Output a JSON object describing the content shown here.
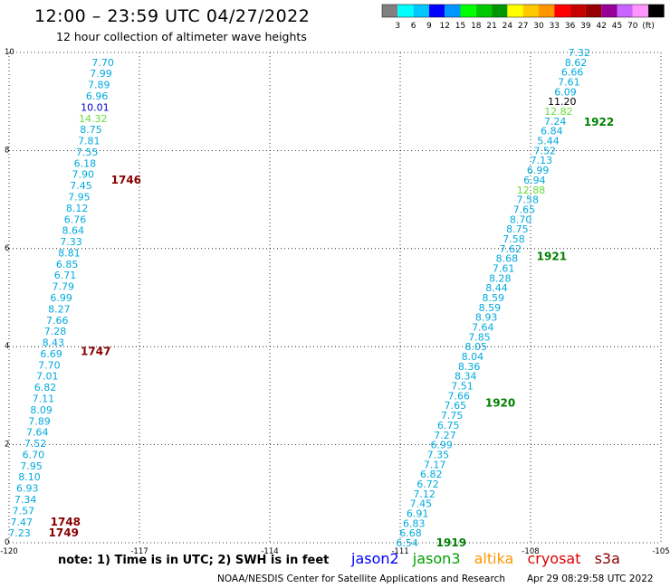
{
  "header": {
    "title": "12:00 – 23:59 UTC 04/27/2022",
    "subtitle": "12 hour collection of altimeter wave heights"
  },
  "legend": {
    "colors": [
      "#808080",
      "#00ffff",
      "#00c8ff",
      "#0000ff",
      "#0096ff",
      "#00ff00",
      "#00c800",
      "#009600",
      "#ffff00",
      "#ffc800",
      "#ff9600",
      "#ff0000",
      "#c80000",
      "#960000",
      "#960096",
      "#c864ff",
      "#ff96ff",
      "#000000"
    ],
    "labels": [
      "3",
      "6",
      "9",
      "12",
      "15",
      "18",
      "21",
      "24",
      "27",
      "30",
      "33",
      "36",
      "39",
      "42",
      "45",
      "70",
      "(ft)"
    ]
  },
  "chart_data": {
    "type": "scatter",
    "xlim": [
      -120,
      -105
    ],
    "ylim": [
      0,
      10
    ],
    "x_ticks": [
      "-120",
      "-117",
      "-114",
      "-111",
      "-108",
      "-105"
    ],
    "y_ticks": [
      "0",
      "2",
      "4",
      "6",
      "8",
      "10"
    ],
    "grid": true,
    "track_color": "#00aadd",
    "tracks": [
      {
        "satellite": "cryosat",
        "x_start": -119.76,
        "y_start": 0.2,
        "x_end": -117.84,
        "y_end": 9.8,
        "values": [
          "7.23",
          "7.47",
          "7.57",
          "7.34",
          "6.93",
          "8.10",
          "7.95",
          "6.70",
          "7.52",
          "7.64",
          "7.89",
          "8.09",
          "7.11",
          "6.82",
          "7.01",
          "7.70",
          "6.69",
          "8.43",
          "7.28",
          "7.66",
          "8.27",
          "6.99",
          "7.79",
          "6.71",
          "6.85",
          "8.81",
          "7.33",
          "8.64",
          "6.76",
          "8.12",
          "7.95",
          "7.45",
          "7.90",
          "6.18",
          "7.55",
          "7.81",
          "8.75",
          "14.32",
          "10.01",
          "6.96",
          "7.89",
          "7.99",
          "7.70"
        ],
        "value_colors": {
          "14.32": "#66dd33",
          "10.01": "#0000cc"
        },
        "time_labels": [
          {
            "label": "1749",
            "y": 0.2
          },
          {
            "label": "1748",
            "y": 0.42
          },
          {
            "label": "1747",
            "y": 3.9
          },
          {
            "label": "1746",
            "y": 7.4
          }
        ],
        "time_color": "#880000"
      },
      {
        "satellite": "jason3",
        "x_start": -110.84,
        "y_start": 0.0,
        "x_end": -106.88,
        "y_end": 10.0,
        "values": [
          "6.54",
          "6.68",
          "6.83",
          "6.91",
          "7.45",
          "7.12",
          "6.72",
          "6.82",
          "7.17",
          "7.35",
          "6.99",
          "7.27",
          "6.75",
          "7.75",
          "7.65",
          "7.66",
          "7.51",
          "8.34",
          "8.36",
          "8.04",
          "8.05",
          "7.85",
          "7.64",
          "8.93",
          "8.59",
          "8.59",
          "8.44",
          "8.28",
          "7.61",
          "8.68",
          "7.62",
          "7.58",
          "8.75",
          "8.70",
          "7.65",
          "7.58",
          "12.88",
          "6.94",
          "6.99",
          "7.13",
          "7.52",
          "5.44",
          "6.84",
          "7.24",
          "12.82",
          "11.20",
          "6.09",
          "7.61",
          "6.66",
          "8.62",
          "7.32"
        ],
        "value_colors": {
          "12.88": "#66dd33",
          "12.82": "#66dd33",
          "11.20": "#000000"
        },
        "time_labels": [
          {
            "label": "1919",
            "y": 0.0
          },
          {
            "label": "1920",
            "y": 2.85
          },
          {
            "label": "1921",
            "y": 5.84
          },
          {
            "label": "1922",
            "y": 8.58
          }
        ],
        "time_color": "#008000"
      }
    ]
  },
  "footer": {
    "note": "note:  1) Time is in UTC;  2) SWH is in feet",
    "satellites": [
      {
        "name": "jason2",
        "color": "#0000ff"
      },
      {
        "name": "jason3",
        "color": "#00a000"
      },
      {
        "name": "altika",
        "color": "#ff9600"
      },
      {
        "name": "cryosat",
        "color": "#dd0000"
      },
      {
        "name": "s3a",
        "color": "#880000"
      }
    ],
    "credit": "NOAA/NESDIS Center for Satellite Applications and Research",
    "timestamp": "Apr 29 08:29:58 UTC 2022"
  }
}
